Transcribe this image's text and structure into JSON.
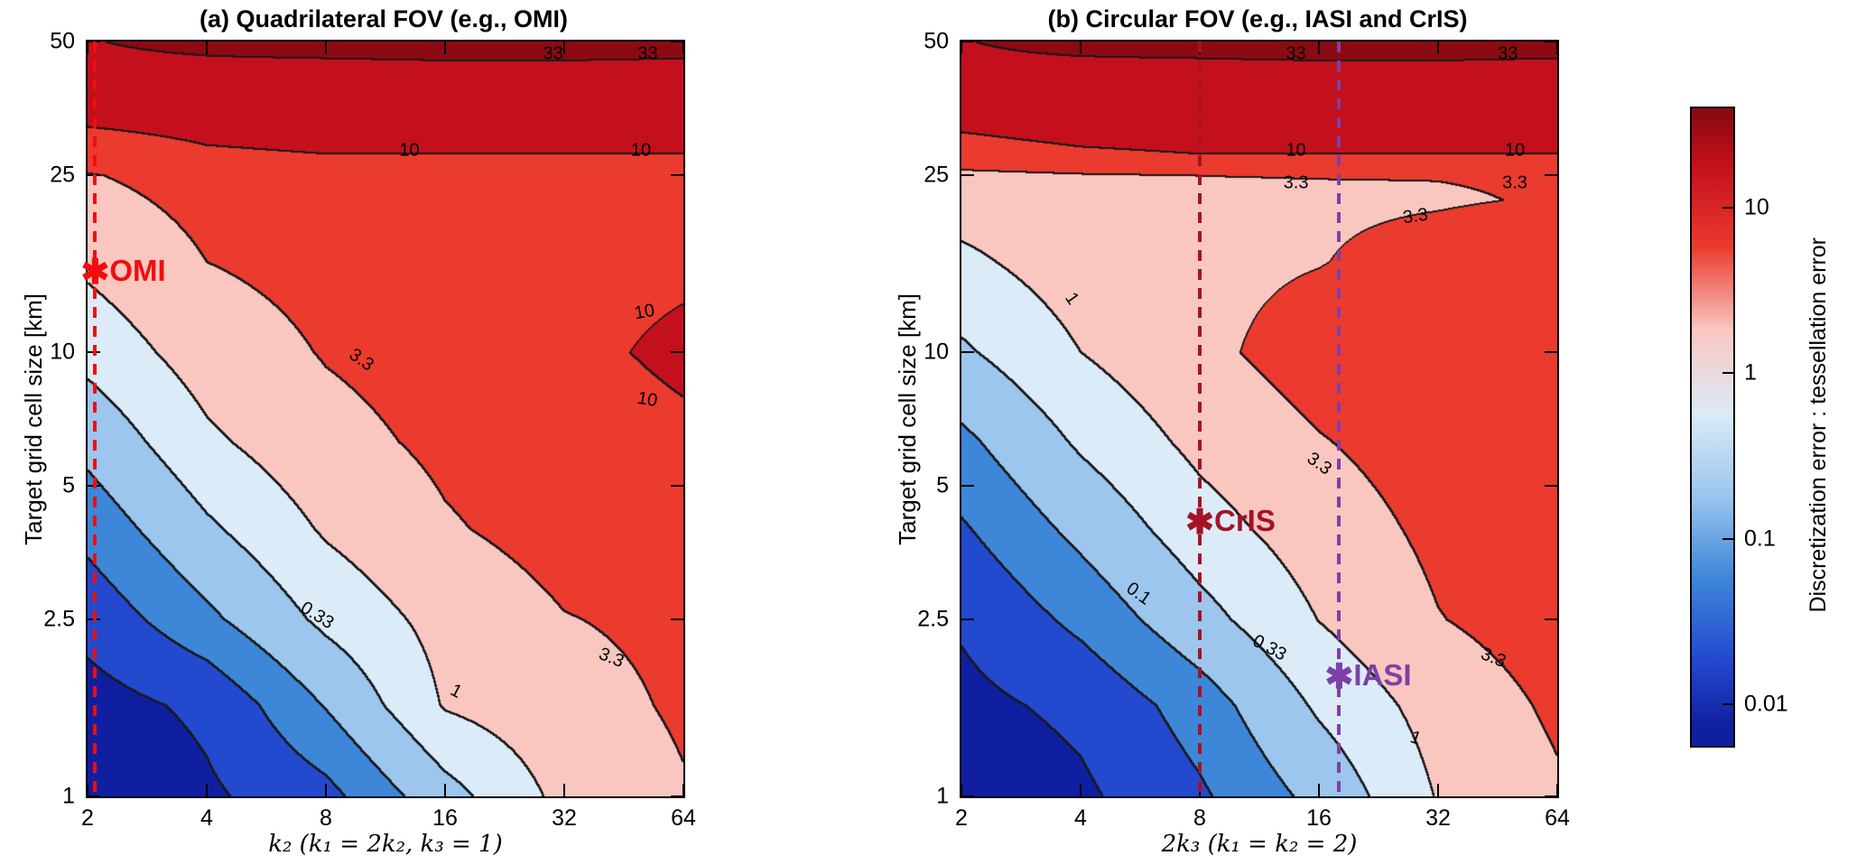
{
  "chart_data": {
    "type": "contour",
    "description": "Filled contour plots of the ratio of discretization error to tessellation error versus oversampling factor (x, log2 scale) and target grid cell size (y, log10 scale).",
    "levels": [
      0.01,
      0.033,
      0.1,
      0.33,
      1,
      3.3,
      10,
      33
    ],
    "levels_log10": [
      -2,
      -1.4771,
      -1,
      -0.4771,
      0,
      0.5185,
      1,
      1.5185
    ],
    "band_colors": [
      "#101fa0",
      "#2349cf",
      "#3e86d8",
      "#9cc6ee",
      "#dcebf8",
      "#f9c7c0",
      "#ea3b2e",
      "#c3101c",
      "#8c0a12"
    ],
    "contour_line_color": "#191919",
    "marker_glyph": "✱",
    "panels": [
      {
        "id": "a",
        "title": "(a) Quadrilateral FOV (e.g., OMI)",
        "xlabel": "k₂ (k₁ = 2k₂, k₃ = 1)",
        "ylabel": "Target grid cell size [km]",
        "x_scale": "log2",
        "y_scale": "log10",
        "x_range": [
          2,
          64
        ],
        "y_range": [
          1,
          50
        ],
        "x_ticks": [
          2,
          4,
          8,
          16,
          32,
          64
        ],
        "y_ticks": [
          1,
          2.5,
          5,
          10,
          25,
          50
        ],
        "grid": {
          "x": [
            2,
            4,
            8,
            16,
            32,
            64
          ],
          "y": [
            1,
            1.6,
            2.5,
            4,
            6.3,
            10,
            16,
            25,
            28,
            35,
            46,
            50
          ],
          "log10_ratio": [
            [
              -2.6,
              -2.09,
              -1.63,
              -0.67,
              0.14,
              0.48
            ],
            [
              -2.23,
              -1.88,
              -0.97,
              0.04,
              0.33,
              0.58
            ],
            [
              -1.81,
              -1.11,
              -0.36,
              0.17,
              0.5,
              0.62
            ],
            [
              -1.32,
              -0.56,
              0.06,
              0.47,
              0.7,
              0.8
            ],
            [
              -0.84,
              -0.09,
              0.36,
              0.62,
              0.8,
              0.92
            ],
            [
              -0.32,
              0.24,
              0.55,
              0.72,
              0.9,
              1.08
            ],
            [
              0.1,
              0.52,
              0.68,
              0.78,
              0.88,
              0.93
            ],
            [
              0.49,
              0.7,
              0.85,
              0.9,
              0.92,
              0.93
            ],
            [
              0.75,
              0.95,
              1.0,
              1.0,
              1.0,
              1.0
            ],
            [
              1.15,
              1.2,
              1.25,
              1.28,
              1.28,
              1.28
            ],
            [
              1.45,
              1.5,
              1.52,
              1.53,
              1.53,
              1.52
            ],
            [
              1.5,
              1.62,
              1.72,
              1.75,
              1.75,
              1.73
            ]
          ]
        },
        "contour_labels": [
          {
            "text": "33",
            "x": 30,
            "y": 46.8,
            "rot": 0
          },
          {
            "text": "33",
            "x": 52,
            "y": 46.8,
            "rot": 0
          },
          {
            "text": "10",
            "x": 13,
            "y": 28.4,
            "rot": 0
          },
          {
            "text": "10",
            "x": 50,
            "y": 28.4,
            "rot": 0
          },
          {
            "text": "10",
            "x": 51,
            "y": 12.3,
            "rot": -10
          },
          {
            "text": "10",
            "x": 52,
            "y": 7.8,
            "rot": 10
          },
          {
            "text": "3.3",
            "x": 9.8,
            "y": 9.6,
            "rot": 35
          },
          {
            "text": "3.3",
            "x": 42,
            "y": 2.05,
            "rot": 22
          },
          {
            "text": "1",
            "x": 17,
            "y": 1.72,
            "rot": 28
          },
          {
            "text": "0.33",
            "x": 7.6,
            "y": 2.55,
            "rot": 32
          }
        ],
        "annotations": [
          {
            "label": "OMI",
            "x": 2.09,
            "y": 15,
            "color": "#f20d0d",
            "dashed_line_x": 2.09
          }
        ]
      },
      {
        "id": "b",
        "title": "(b) Circular FOV (e.g., IASI and CrIS)",
        "xlabel": "2k₃ (k₁ = k₂ = 2)",
        "ylabel": "Target grid cell size [km]",
        "x_scale": "log2",
        "y_scale": "log10",
        "x_range": [
          2,
          64
        ],
        "y_range": [
          1,
          50
        ],
        "x_ticks": [
          2,
          4,
          8,
          16,
          32,
          64
        ],
        "y_ticks": [
          1,
          2.5,
          5,
          10,
          25,
          50
        ],
        "grid": {
          "x": [
            2,
            4,
            8,
            16,
            32,
            64
          ],
          "y": [
            1,
            1.6,
            2.5,
            4,
            6.3,
            10,
            16,
            22,
            25,
            28,
            35,
            46,
            50
          ],
          "log10_ratio": [
            [
              -2.45,
              -2.1,
              -1.55,
              -0.85,
              0.03,
              0.45
            ],
            [
              -2.15,
              -1.87,
              -1.25,
              -0.4,
              0.2,
              0.6
            ],
            [
              -1.93,
              -1.35,
              -0.65,
              0.01,
              0.5,
              0.75
            ],
            [
              -1.53,
              -0.86,
              -0.2,
              0.26,
              0.63,
              0.8
            ],
            [
              -1.11,
              -0.4,
              0.13,
              0.49,
              0.75,
              0.88
            ],
            [
              -0.55,
              0.0,
              0.4,
              0.75,
              0.85,
              0.95
            ],
            [
              -0.1,
              0.25,
              0.4,
              0.5,
              0.7,
              0.85
            ],
            [
              0.2,
              0.35,
              0.42,
              0.45,
              0.48,
              0.55
            ],
            [
              0.4,
              0.48,
              0.52,
              0.53,
              0.53,
              0.56
            ],
            [
              0.85,
              0.95,
              1.0,
              1.0,
              1.0,
              1.0
            ],
            [
              1.15,
              1.25,
              1.28,
              1.28,
              1.28,
              1.28
            ],
            [
              1.45,
              1.5,
              1.52,
              1.53,
              1.53,
              1.52
            ],
            [
              1.5,
              1.65,
              1.75,
              1.75,
              1.73,
              1.72
            ]
          ]
        },
        "contour_labels": [
          {
            "text": "33",
            "x": 14,
            "y": 46.8,
            "rot": 0
          },
          {
            "text": "33",
            "x": 48,
            "y": 46.8,
            "rot": 0
          },
          {
            "text": "10",
            "x": 14,
            "y": 28.4,
            "rot": 0
          },
          {
            "text": "10",
            "x": 50,
            "y": 28.4,
            "rot": 0
          },
          {
            "text": "3.3",
            "x": 14,
            "y": 24.0,
            "rot": 0
          },
          {
            "text": "3.3",
            "x": 50,
            "y": 24.0,
            "rot": 0
          },
          {
            "text": "3.3",
            "x": 28,
            "y": 20.2,
            "rot": -8
          },
          {
            "text": "1",
            "x": 3.8,
            "y": 13.2,
            "rot": 55
          },
          {
            "text": "3.3",
            "x": 16,
            "y": 5.6,
            "rot": 35
          },
          {
            "text": "0.1",
            "x": 5.6,
            "y": 2.85,
            "rot": 35
          },
          {
            "text": "0.33",
            "x": 12,
            "y": 2.15,
            "rot": 28
          },
          {
            "text": "1",
            "x": 28,
            "y": 1.35,
            "rot": 20
          },
          {
            "text": "3.3",
            "x": 44,
            "y": 2.05,
            "rot": 22
          }
        ],
        "annotations": [
          {
            "label": "CrIS",
            "x": 8,
            "y": 4.1,
            "color": "#a51226",
            "dashed_line_x": 8
          },
          {
            "label": "IASI",
            "x": 18,
            "y": 1.85,
            "color": "#7d3fa8",
            "dashed_line_x": 18
          }
        ]
      }
    ],
    "colorbar": {
      "label": "Discretization error : tessellation error",
      "ticks": [
        {
          "label": "10",
          "value": 10
        },
        {
          "label": "1",
          "value": 1
        },
        {
          "label": "0.1",
          "value": 0.1
        },
        {
          "label": "0.01",
          "value": 0.01
        }
      ],
      "log10_range": [
        -2.25,
        1.6
      ]
    }
  }
}
